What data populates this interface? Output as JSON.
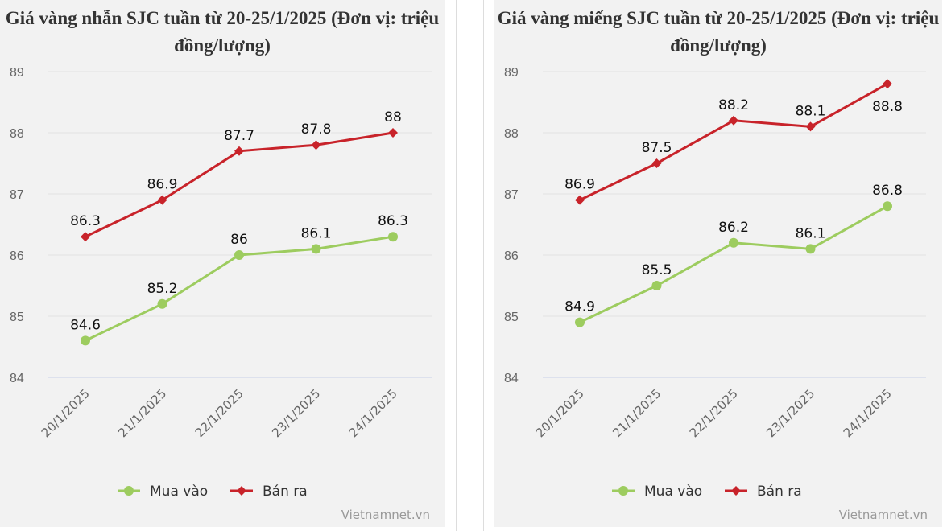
{
  "chart_data": [
    {
      "type": "line",
      "title": "Giá vàng nhẫn SJC tuần từ 20-25/1/2025 (Đơn vị: triệu đồng/lượng)",
      "categories": [
        "20/1/2025",
        "21/1/2025",
        "22/1/2025",
        "23/1/2025",
        "24/1/2025"
      ],
      "ylim": [
        84,
        89
      ],
      "yticks": [
        "84",
        "85",
        "86",
        "87",
        "88",
        "89"
      ],
      "grid": true,
      "legend": "bottom",
      "series": [
        {
          "name": "Mua vào",
          "color": "#9dcc5f",
          "marker": "circle",
          "values": [
            84.6,
            85.2,
            86,
            86.1,
            86.3
          ]
        },
        {
          "name": "Bán ra",
          "color": "#c8232a",
          "marker": "diamond",
          "values": [
            86.3,
            86.9,
            87.7,
            87.8,
            88
          ]
        }
      ],
      "credit": "Vietnamnet.vn"
    },
    {
      "type": "line",
      "title": "Giá vàng miếng SJC tuần từ 20-25/1/2025 (Đơn vị: triệu đồng/lượng)",
      "categories": [
        "20/1/2025",
        "21/1/2025",
        "22/1/2025",
        "23/1/2025",
        "24/1/2025"
      ],
      "ylim": [
        84,
        89
      ],
      "yticks": [
        "84",
        "85",
        "86",
        "87",
        "88",
        "89"
      ],
      "grid": true,
      "legend": "bottom",
      "series": [
        {
          "name": "Mua vào",
          "color": "#9dcc5f",
          "marker": "circle",
          "values": [
            84.9,
            85.5,
            86.2,
            86.1,
            86.8
          ]
        },
        {
          "name": "Bán ra",
          "color": "#c8232a",
          "marker": "diamond",
          "values": [
            86.9,
            87.5,
            88.2,
            88.1,
            88.8
          ]
        }
      ],
      "credit": "Vietnamnet.vn"
    }
  ]
}
